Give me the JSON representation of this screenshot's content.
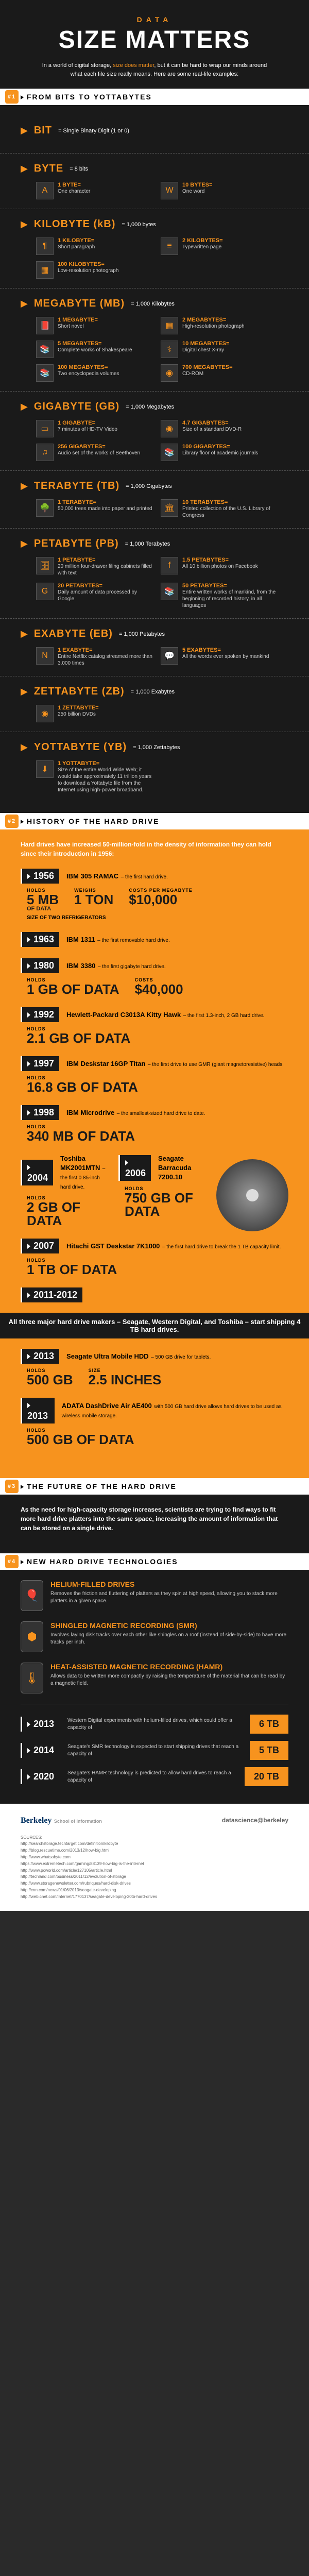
{
  "header": {
    "subtitle": "DATA",
    "title": "SIZE MATTERS",
    "intro_pre": "In a world of digital storage, ",
    "intro_hl": "size does matter",
    "intro_post": ", but it can be hard to wrap our minds around what each file size really means. Here are some real-life examples:"
  },
  "sections": {
    "s1": {
      "num": "#1",
      "title": "FROM BITS TO YOTTABYTES"
    },
    "s2": {
      "num": "#2",
      "title": "HISTORY OF THE HARD DRIVE"
    },
    "s3": {
      "num": "#3",
      "title": "THE FUTURE OF THE HARD DRIVE"
    },
    "s4": {
      "num": "#4",
      "title": "NEW HARD DRIVE TECHNOLOGIES"
    }
  },
  "units": [
    {
      "name": "BIT",
      "eq": "= Single Binary Digit (1 or 0)",
      "examples": []
    },
    {
      "name": "BYTE",
      "eq": "= 8 bits",
      "examples": [
        {
          "icon": "A",
          "amt": "1 BYTE=",
          "desc": "One character"
        },
        {
          "icon": "W",
          "amt": "10 BYTES=",
          "desc": "One word"
        }
      ]
    },
    {
      "name": "KILOBYTE (kB)",
      "eq": "= 1,000 bytes",
      "examples": [
        {
          "icon": "¶",
          "amt": "1 KILOBYTE=",
          "desc": "Short paragraph"
        },
        {
          "icon": "≡",
          "amt": "2 KILOBYTES=",
          "desc": "Typewritten page"
        },
        {
          "icon": "▦",
          "amt": "100 KILOBYTES=",
          "desc": "Low-resolution photograph"
        }
      ]
    },
    {
      "name": "MEGABYTE (MB)",
      "eq": "= 1,000 Kilobytes",
      "examples": [
        {
          "icon": "📕",
          "amt": "1 MEGABYTE=",
          "desc": "Short novel"
        },
        {
          "icon": "▦",
          "amt": "2 MEGABYTES=",
          "desc": "High-resolution photograph"
        },
        {
          "icon": "📚",
          "amt": "5 MEGABYTES=",
          "desc": "Complete works of Shakespeare"
        },
        {
          "icon": "⚕",
          "amt": "10 MEGABYTES=",
          "desc": "Digital chest X-ray"
        },
        {
          "icon": "📚",
          "amt": "100 MEGABYTES=",
          "desc": "Two encyclopedia volumes"
        },
        {
          "icon": "◉",
          "amt": "700 MEGABYTES=",
          "desc": "CD-ROM"
        }
      ]
    },
    {
      "name": "GIGABYTE (GB)",
      "eq": "= 1,000 Megabytes",
      "examples": [
        {
          "icon": "▭",
          "amt": "1 GIGABYTE=",
          "desc": "7 minutes of HD-TV Video"
        },
        {
          "icon": "◉",
          "amt": "4.7 GIGABYTES=",
          "desc": "Size of a standard DVD-R"
        },
        {
          "icon": "♫",
          "amt": "256 GIGABYTES=",
          "desc": "Audio set of the works of Beethoven"
        },
        {
          "icon": "📚",
          "amt": "100 GIGABYTES=",
          "desc": "Library floor of academic journals"
        }
      ]
    },
    {
      "name": "TERABYTE (TB)",
      "eq": "= 1,000 Gigabytes",
      "examples": [
        {
          "icon": "🌳",
          "amt": "1 TERABYTE=",
          "desc": "50,000 trees made into paper and printed"
        },
        {
          "icon": "🏛",
          "amt": "10 TERABYTES=",
          "desc": "Printed collection of the U.S. Library of Congress"
        }
      ]
    },
    {
      "name": "PETABYTE (PB)",
      "eq": "= 1,000 Terabytes",
      "examples": [
        {
          "icon": "🗄",
          "amt": "1 PETABYTE=",
          "desc": "20 million four-drawer filing cabinets filled with text"
        },
        {
          "icon": "f",
          "amt": "1.5 PETABYTES=",
          "desc": "All 10 billion photos on Facebook"
        },
        {
          "icon": "G",
          "amt": "20 PETABYTES=",
          "desc": "Daily amount of data processed by Google"
        },
        {
          "icon": "📚",
          "amt": "50 PETABYTES=",
          "desc": "Entire written works of mankind, from the beginning of recorded history, in all languages"
        }
      ]
    },
    {
      "name": "EXABYTE (EB)",
      "eq": "= 1,000 Petabytes",
      "examples": [
        {
          "icon": "N",
          "amt": "1 EXABYTE=",
          "desc": "Entire Netflix catalog streamed more than 3,000 times"
        },
        {
          "icon": "💬",
          "amt": "5 EXABYTES=",
          "desc": "All the words ever spoken by mankind"
        }
      ]
    },
    {
      "name": "ZETTABYTE (ZB)",
      "eq": "= 1,000 Exabytes",
      "examples": [
        {
          "icon": "◉",
          "amt": "1 ZETTABYTE=",
          "desc": "250 billion DVDs"
        }
      ]
    },
    {
      "name": "YOTTABYTE (YB)",
      "eq": "= 1,000 Zettabytes",
      "examples": [
        {
          "icon": "⬇",
          "amt": "1 YOTTABYTE=",
          "desc": "Size of the entire World Wide Web; it would take approximately 11 trillion years to download a Yottabyte file from the Internet using high-power broadband."
        }
      ]
    }
  ],
  "history": {
    "intro": "Hard drives have increased 50-million-fold in the density of information they can hold since their introduction in 1956:",
    "timeline": [
      {
        "year": "1956",
        "name": "IBM 305 RAMAC",
        "desc": "– the first hard drive.",
        "stats": [
          {
            "lab": "HOLDS",
            "val": "5 MB",
            "sub": "OF DATA"
          },
          {
            "lab": "WEIGHS",
            "val": "1 TON"
          },
          {
            "lab": "COSTS PER MEGABYTE",
            "val": "$10,000"
          }
        ],
        "extra": "SIZE OF TWO REFRIGERATORS"
      },
      {
        "year": "1963",
        "name": "IBM 1311",
        "desc": "– the first removable hard drive."
      },
      {
        "year": "1980",
        "name": "IBM 3380",
        "desc": "– the first gigabyte hard drive.",
        "stats": [
          {
            "lab": "HOLDS",
            "val": "1 GB OF DATA"
          },
          {
            "lab": "COSTS",
            "val": "$40,000"
          }
        ]
      },
      {
        "year": "1992",
        "name": "Hewlett-Packard C3013A Kitty Hawk",
        "desc": "– the first 1.3-inch, 2 GB hard drive.",
        "stats": [
          {
            "lab": "HOLDS",
            "val": "2.1 GB OF DATA"
          }
        ]
      },
      {
        "year": "1997",
        "name": "IBM Deskstar 16GP Titan",
        "desc": "– the first drive to use GMR (giant magnetoresistive) heads.",
        "stats": [
          {
            "lab": "HOLDS",
            "val": "16.8 GB OF DATA"
          }
        ]
      },
      {
        "year": "1998",
        "name": "IBM Microdrive",
        "desc": "– the smallest-sized hard drive to date.",
        "stats": [
          {
            "lab": "HOLDS",
            "val": "340 MB OF DATA"
          }
        ]
      }
    ],
    "dual": [
      {
        "year": "2004",
        "name": "Toshiba MK2001MTN",
        "desc": "– the first 0.85-inch hard drive.",
        "stat": {
          "lab": "HOLDS",
          "val": "2 GB OF DATA"
        }
      },
      {
        "year": "2006",
        "name": "Seagate Barracuda 7200.10",
        "stat": {
          "lab": "HOLDS",
          "val": "750 GB OF DATA"
        }
      }
    ],
    "y2007": {
      "year": "2007",
      "name": "Hitachi GST Deskstar 7K1000",
      "desc": "– the first hard drive to break the 1 TB capacity limit.",
      "stat": {
        "lab": "HOLDS",
        "val": "1 TB OF DATA"
      }
    },
    "shared": "All three major hard drive makers – Seagate, Western Digital, and Toshiba – start shipping 4 TB hard drives.",
    "shared_year": "2011-2012",
    "y2013a": {
      "year": "2013",
      "name": "Seagate Ultra Mobile HDD",
      "desc": "– 500 GB drive for tablets.",
      "stats": [
        {
          "lab": "HOLDS",
          "val": "500 GB"
        },
        {
          "lab": "SIZE",
          "val": "2.5 INCHES"
        }
      ]
    },
    "y2013b": {
      "year": "2013",
      "name": "ADATA DashDrive Air AE400",
      "desc": "with 500 GB hard drive allows hard drives to be used as wireless mobile storage.",
      "stat": {
        "lab": "HOLDS",
        "val": "500 GB OF DATA"
      }
    }
  },
  "future": {
    "intro": "As the need for high-capacity storage increases, scientists are trying to find ways to fit more hard drive platters into the same space, increasing the amount of information that can be stored on a single drive.",
    "techs": [
      {
        "icon": "🎈",
        "name": "HELIUM-FILLED DRIVES",
        "desc": "Removes the friction and fluttering of platters as they spin at high speed, allowing you to stack more platters in a given space."
      },
      {
        "icon": "⬢",
        "name": "SHINGLED MAGNETIC RECORDING (SMR)",
        "desc": "Involves laying disk tracks over each other like shingles on a roof (instead of side-by-side) to have more tracks per inch."
      },
      {
        "icon": "🌡",
        "name": "HEAT-ASSISTED MAGNETIC RECORDING (HAMR)",
        "desc": "Allows data to be written more compactly by raising the temperature of the material that can be read by a magnetic field."
      }
    ],
    "proj": [
      {
        "year": "2013",
        "text": "Western Digital experiments with helium-filled drives, which could offer a capacity of",
        "val": "6 TB"
      },
      {
        "year": "2014",
        "text": "Seagate's SMR technology is expected to start shipping drives that reach a capacity of",
        "val": "5 TB"
      },
      {
        "year": "2020",
        "text": "Seagate's HAMR technology is predicted to allow hard drives to reach a capacity of",
        "val": "20 TB"
      }
    ]
  },
  "footer": {
    "logo_b": "Berkeley",
    "logo_b_sub": "School of Information",
    "logo_d": "datascience@berkeley",
    "sources": "SOURCES:\nhttp://searchstorage.techtarget.com/definition/kilobyte\nhttp://blog.rescuetime.com/2013/12/how-big.html\nhttp://www.whatsabyte.com\nhttps://www.extremetech.com/gaming/88139-how-big-is-the-internet\nhttp://www.pcworld.com/article/127105/article.html\nhttp://techland.com/business/2011/12/evolution-of-storage\nhttp://www.storagenewsletter.com/rubriques/hard-disk-drives\nhttp://cnn.com/news/01/06/2013/seagate-developing\nhttp://web.cnet.com/Internet/1770137/seagate-developing-20tb-hard-drives"
  },
  "colors": {
    "accent": "#f7931e",
    "dark": "#1a1a1a",
    "white": "#ffffff"
  }
}
